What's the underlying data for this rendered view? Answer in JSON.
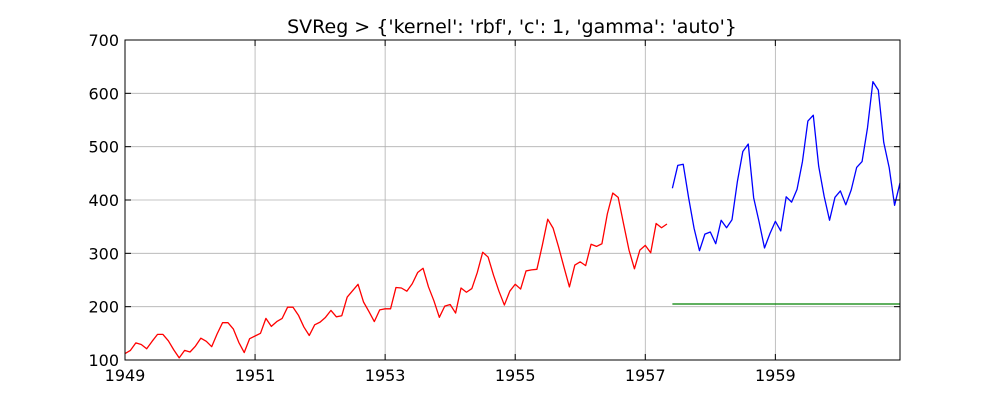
{
  "chart_data": {
    "type": "line",
    "title": "SVReg > {'kernel': 'rbf', 'c': 1, 'gamma': 'auto'}",
    "xlabel": "",
    "ylabel": "",
    "xlim": [
      "1949-01",
      "1960-12"
    ],
    "ylim": [
      100,
      700
    ],
    "xticks": [
      "1949",
      "1951",
      "1953",
      "1955",
      "1957",
      "1959"
    ],
    "yticks": [
      100,
      200,
      300,
      400,
      500,
      600,
      700
    ],
    "grid": true,
    "legend": "none",
    "series": [
      {
        "color": "#ff0000",
        "start": "1949-01",
        "values": [
          112,
          118,
          132,
          129,
          121,
          135,
          148,
          148,
          136,
          119,
          104,
          118,
          115,
          126,
          141,
          135,
          125,
          149,
          170,
          170,
          158,
          133,
          114,
          140,
          145,
          150,
          178,
          163,
          172,
          178,
          199,
          199,
          184,
          162,
          146,
          166,
          171,
          180,
          193,
          181,
          183,
          218,
          230,
          242,
          209,
          191,
          172,
          194,
          196,
          196,
          236,
          235,
          229,
          243,
          264,
          272,
          237,
          211,
          180,
          201,
          204,
          188,
          235,
          227,
          234,
          264,
          302,
          293,
          259,
          229,
          203,
          229,
          242,
          233,
          267,
          269,
          270,
          315,
          364,
          347,
          312,
          274,
          237,
          278,
          284,
          277,
          317,
          313,
          318,
          374,
          413,
          405,
          355,
          306,
          271,
          306,
          315,
          301,
          356,
          348,
          355
        ]
      },
      {
        "color": "#0000ff",
        "start": "1957-06",
        "values": [
          422,
          465,
          467,
          404,
          347,
          305,
          336,
          340,
          318,
          362,
          348,
          363,
          435,
          491,
          505,
          404,
          359,
          310,
          337,
          360,
          342,
          406,
          396,
          420,
          472,
          548,
          559,
          463,
          407,
          362,
          405,
          417,
          391,
          419,
          461,
          472,
          535,
          622,
          606,
          508,
          461,
          390,
          432
        ]
      },
      {
        "color": "#008000",
        "start": "1957-06",
        "values": [
          205,
          205,
          205,
          205,
          205,
          205,
          205,
          205,
          205,
          205,
          205,
          205,
          205,
          205,
          205,
          205,
          205,
          205,
          205,
          205,
          205,
          205,
          205,
          205,
          205,
          205,
          205,
          205,
          205,
          205,
          205,
          205,
          205,
          205,
          205,
          205,
          205,
          205,
          205,
          205,
          205,
          205,
          205
        ]
      }
    ]
  }
}
